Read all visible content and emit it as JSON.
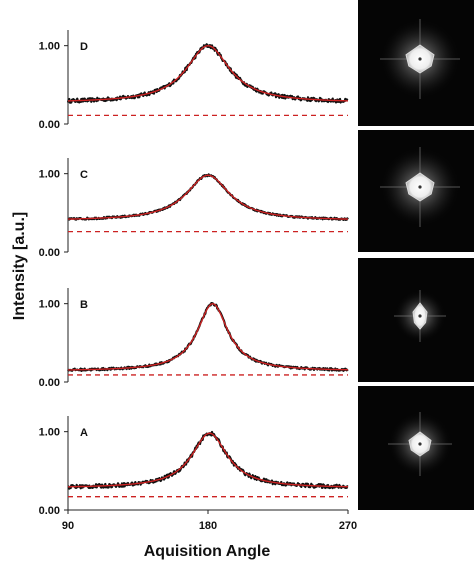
{
  "chart_data": {
    "type": "line",
    "xlabel": "Aquisition Angle",
    "ylabel": "Intensity [a.u.]",
    "xlim": [
      90,
      270
    ],
    "x_ticks": [
      "90",
      "180",
      "270"
    ],
    "y_ticks": [
      "0.00",
      "1.00"
    ],
    "ylim": [
      0,
      1.2
    ],
    "series_colors": {
      "data": "#111111",
      "fit": "#cc2222",
      "baseline": "#cc2222"
    },
    "panels": [
      {
        "label": "D",
        "baseline": 0.11,
        "peak_x": 180,
        "peak_y": 1.0,
        "offset": 0.27,
        "width": 17,
        "noise": 0.025
      },
      {
        "label": "C",
        "baseline": 0.26,
        "peak_x": 180,
        "peak_y": 0.98,
        "offset": 0.4,
        "width": 17,
        "noise": 0.012
      },
      {
        "label": "B",
        "baseline": 0.09,
        "peak_x": 183,
        "peak_y": 1.0,
        "offset": 0.14,
        "width": 12,
        "noise": 0.015
      },
      {
        "label": "A",
        "baseline": 0.17,
        "peak_x": 181,
        "peak_y": 0.98,
        "offset": 0.28,
        "width": 14,
        "noise": 0.025
      }
    ]
  },
  "images": [
    {
      "label": "D",
      "spot": "diamond-large"
    },
    {
      "label": "C",
      "spot": "diamond-large"
    },
    {
      "label": "B",
      "spot": "diamond-narrow"
    },
    {
      "label": "A",
      "spot": "diamond-medium"
    }
  ]
}
